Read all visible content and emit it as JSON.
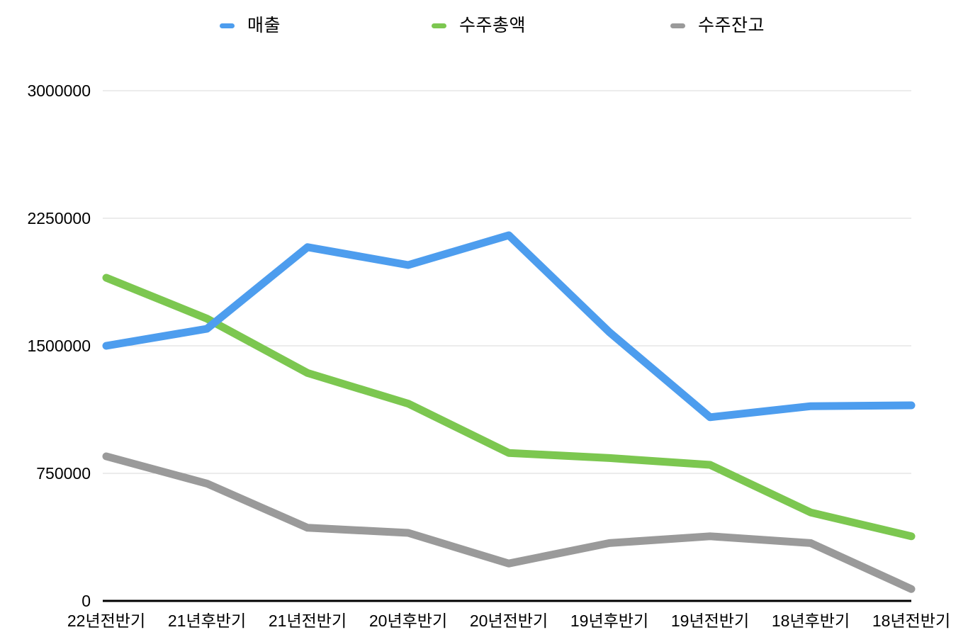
{
  "legend": {
    "items": [
      {
        "key": "sales",
        "label": "매출",
        "color": "#4D9DEE"
      },
      {
        "key": "total-orders",
        "label": "수주총액",
        "color": "#7CC750"
      },
      {
        "key": "order-backlog",
        "label": "수주잔고",
        "color": "#9A9A9A"
      }
    ]
  },
  "chart_data": {
    "type": "line",
    "title": "",
    "xlabel": "",
    "ylabel": "",
    "categories": [
      "22년전반기",
      "21년후반기",
      "21년전반기",
      "20년후반기",
      "20년전반기",
      "19년후반기",
      "19년전반기",
      "18년후반기",
      "18년전반기"
    ],
    "series": [
      {
        "key": "sales",
        "name": "매출",
        "color": "#4D9DEE",
        "values": [
          1500000,
          1600000,
          2080000,
          1975000,
          2150000,
          1580000,
          1080000,
          1145000,
          1150000
        ]
      },
      {
        "key": "total-orders",
        "name": "수주총액",
        "color": "#7CC750",
        "values": [
          1900000,
          1660000,
          1340000,
          1160000,
          870000,
          840000,
          800000,
          520000,
          380000
        ]
      },
      {
        "key": "order-backlog",
        "name": "수주잔고",
        "color": "#9A9A9A",
        "values": [
          850000,
          690000,
          430000,
          400000,
          220000,
          340000,
          380000,
          340000,
          70000
        ]
      }
    ],
    "ylim": [
      0,
      3000000
    ],
    "y_ticks": [
      0,
      750000,
      1500000,
      2250000,
      3000000
    ],
    "y_tick_labels": [
      "0",
      "750000",
      "1500000",
      "2250000",
      "3000000"
    ],
    "grid": true,
    "legend_position": "top"
  },
  "colors": {
    "background": "#FFFFFF",
    "gridline": "#D9D9D9",
    "axis": "#000000",
    "text": "#000000"
  }
}
